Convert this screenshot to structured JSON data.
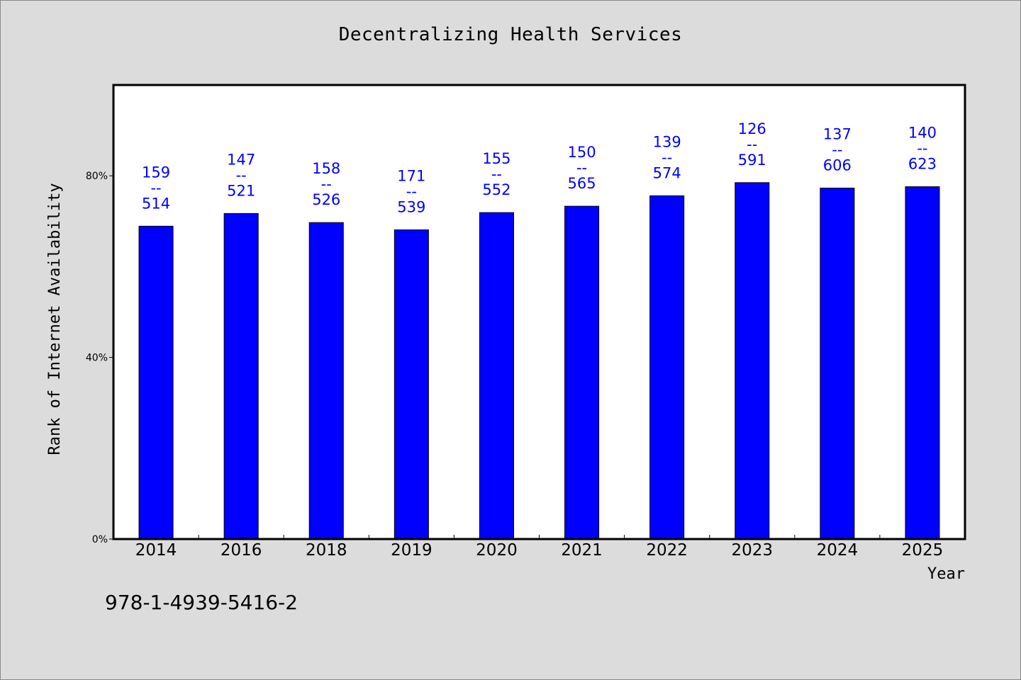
{
  "chart_data": {
    "type": "bar",
    "title": "Decentralizing Health Services",
    "xlabel": "Year",
    "ylabel": "Rank of Internet Availability",
    "y_ticks": [
      "0%",
      "40%",
      "80%"
    ],
    "ylim": [
      0,
      100
    ],
    "categories": [
      "2014",
      "2016",
      "2018",
      "2019",
      "2020",
      "2021",
      "2022",
      "2023",
      "2024",
      "2025"
    ],
    "values": [
      68.9,
      71.7,
      69.7,
      68.1,
      71.9,
      73.3,
      75.6,
      78.5,
      77.3,
      77.6
    ],
    "labels": [
      [
        "159",
        "514"
      ],
      [
        "147",
        "521"
      ],
      [
        "158",
        "526"
      ],
      [
        "171",
        "539"
      ],
      [
        "155",
        "552"
      ],
      [
        "150",
        "565"
      ],
      [
        "139",
        "574"
      ],
      [
        "126",
        "591"
      ],
      [
        "137",
        "606"
      ],
      [
        "140",
        "623"
      ]
    ],
    "label_separator": "--",
    "bar_color": "#0000ff",
    "label_color": "#0000ff",
    "plot_background": "#ffffff",
    "page_background": "#dcdcdc",
    "grid": false,
    "legend": "none"
  },
  "footer": {
    "isbn": "978-1-4939-5416-2"
  }
}
